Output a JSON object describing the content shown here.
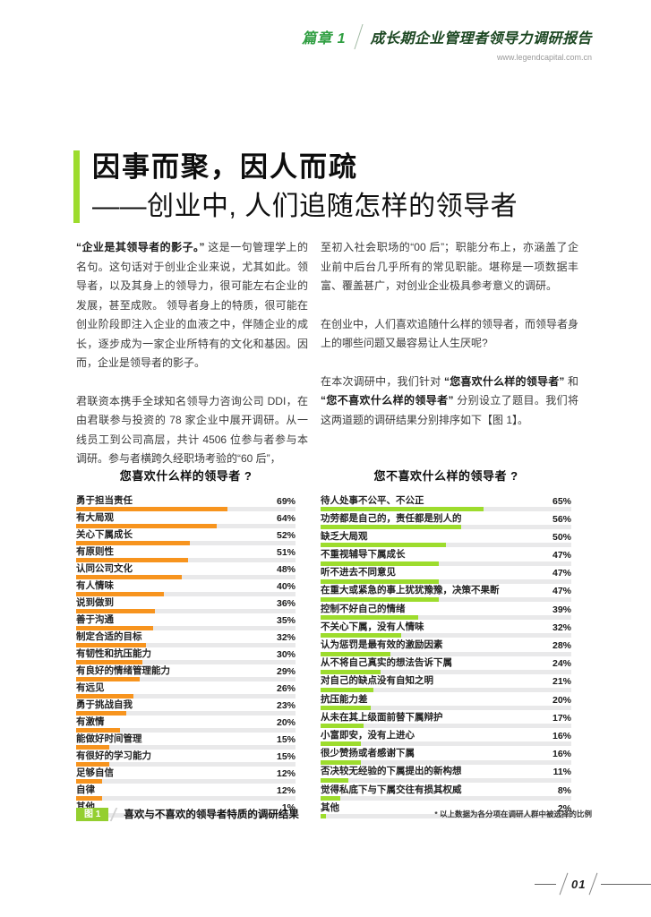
{
  "header": {
    "chapter_label": "篇章 1",
    "report_title": "成长期企业管理者领导力调研报告",
    "url": "www.legendcapital.com.cn"
  },
  "title": {
    "line1": "因事而聚，因人而疏",
    "line2": "——创业中, 人们追随怎样的领导者"
  },
  "body": {
    "left_p1": [
      {
        "text": "“企业是其领导者的影子。”",
        "bold": true
      },
      {
        "text": " 这是一句管理学上的名句。这句话对于创业企业来说，尤其如此。领导者，以及其身上的领导力，很可能左右企业的发展，甚至成败。 领导者身上的特质，很可能在创业阶段即注入企业的血液之中，伴随企业的成长，逐步成为一家企业所特有的文化和基因。因而，企业是领导者的影子。",
        "bold": false
      }
    ],
    "left_p2": [
      {
        "text": "君联资本携手全球知名领导力咨询公司 DDI，在由君联参与投资的 78 家企业中展开调研。从一线员工到公司高层，共计 4506 位参与者参与本调研。参与者横跨久经职场考验的“60 后”，",
        "bold": false
      }
    ],
    "right_p1": [
      {
        "text": "至初入社会职场的“00 后”；职能分布上，亦涵盖了企业前中后台几乎所有的常见职能。堪称是一项数据丰富、覆盖甚广，对创业企业极具参考意义的调研。",
        "bold": false
      }
    ],
    "right_p2": [
      {
        "text": "在创业中，人们喜欢追随什么样的领导者，而领导者身上的哪些问题又最容易让人生厌呢?",
        "bold": false
      }
    ],
    "right_p3": [
      {
        "text": "在本次调研中，我们针对 ",
        "bold": false
      },
      {
        "text": "“您喜欢什么样的领导者”",
        "bold": true
      },
      {
        "text": " 和 ",
        "bold": false
      },
      {
        "text": "“您不喜欢什么样的领导者”",
        "bold": true
      },
      {
        "text": " 分别设立了题目。我们将这两道题的调研结果分别排序如下【图 1】。",
        "bold": false
      }
    ]
  },
  "chart_data": [
    {
      "type": "bar",
      "orientation": "horizontal",
      "title": "您喜欢什么样的领导者 ?",
      "bar_color": "#f7941e",
      "track_color": "#e9e9ea",
      "value_suffix": "%",
      "xlim": [
        0,
        100
      ],
      "categories": [
        "勇于担当责任",
        "有大局观",
        "关心下属成长",
        "有原则性",
        "认同公司文化",
        "有人情味",
        "说到做到",
        "善于沟通",
        "制定合适的目标",
        "有韧性和抗压能力",
        "有良好的情绪管理能力",
        "有远见",
        "勇于挑战自我",
        "有激情",
        "能做好时间管理",
        "有很好的学习能力",
        "足够自信",
        "自律",
        "其他"
      ],
      "values": [
        69,
        64,
        52,
        51,
        48,
        40,
        36,
        35,
        32,
        30,
        29,
        26,
        23,
        20,
        15,
        15,
        12,
        12,
        1
      ]
    },
    {
      "type": "bar",
      "orientation": "horizontal",
      "title": "您不喜欢什么样的领导者 ?",
      "bar_color": "#9ddc2d",
      "track_color": "#e9e9ea",
      "value_suffix": "%",
      "xlim": [
        0,
        100
      ],
      "categories": [
        "待人处事不公平、不公正",
        "功劳都是自己的，责任都是别人的",
        "缺乏大局观",
        "不重视辅导下属成长",
        "听不进去不同意见",
        "在重大或紧急的事上犹犹豫豫，决策不果断",
        "控制不好自己的情绪",
        "不关心下属，没有人情味",
        "认为惩罚是最有效的激励因素",
        "从不将自己真实的想法告诉下属",
        "对自己的缺点没有自知之明",
        "抗压能力差",
        "从未在其上级面前替下属辩护",
        "小富即安，没有上进心",
        "很少赞扬或者感谢下属",
        "否决较无经验的下属提出的新构想",
        "觉得私底下与下属交往有损其权威",
        "其他"
      ],
      "values": [
        65,
        56,
        50,
        47,
        47,
        47,
        39,
        32,
        28,
        24,
        21,
        20,
        17,
        16,
        16,
        11,
        8,
        2
      ]
    }
  ],
  "figure": {
    "badge": "图 1",
    "caption": "喜欢与不喜欢的领导者特质的调研结果",
    "note": "* 以上数据为各分项在调研人群中被选择的比例"
  },
  "page_number": "01",
  "colors": {
    "accent_lime": "#9ddc2d",
    "badge_lime": "#94cf30",
    "chapter_green": "#2f9e41",
    "report_title_green": "#1c4722",
    "bar_orange": "#f7941e",
    "bar_green": "#9ddc2d",
    "track_gray": "#e9e9ea"
  }
}
